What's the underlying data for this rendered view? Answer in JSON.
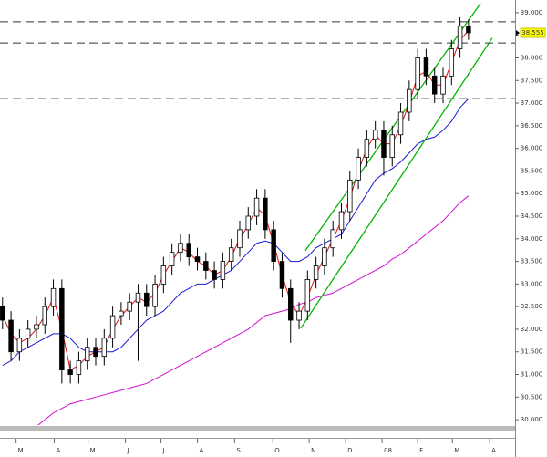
{
  "chart_data": {
    "type": "candlestick",
    "x": [
      0,
      1,
      2,
      3,
      4,
      5,
      6,
      7,
      8,
      9,
      10,
      11,
      12,
      13,
      14,
      15,
      16,
      17,
      18,
      19,
      20,
      21,
      22,
      23,
      24,
      25,
      26,
      27,
      28,
      29,
      30,
      31,
      32,
      33,
      34,
      35,
      36,
      37,
      38,
      39,
      40,
      41,
      42,
      43,
      44,
      45,
      46,
      47,
      48,
      49,
      50,
      51,
      52,
      53,
      54,
      55
    ],
    "open": [
      32.5,
      32.2,
      31.5,
      31.8,
      32.0,
      32.1,
      32.5,
      32.9,
      31.1,
      31.0,
      31.3,
      31.6,
      31.4,
      31.8,
      32.3,
      32.4,
      32.6,
      32.8,
      32.5,
      33.0,
      33.4,
      33.7,
      33.9,
      33.6,
      33.5,
      33.3,
      33.1,
      33.5,
      33.8,
      34.2,
      34.5,
      34.9,
      34.2,
      33.5,
      32.9,
      32.2,
      32.4,
      33.1,
      33.4,
      33.8,
      34.2,
      34.6,
      35.3,
      35.8,
      36.2,
      36.4,
      35.8,
      36.3,
      36.8,
      37.3,
      38.0,
      37.6,
      37.2,
      37.6,
      38.2,
      38.7
    ],
    "high": [
      32.7,
      32.4,
      32.0,
      32.2,
      32.3,
      32.7,
      33.1,
      33.1,
      31.3,
      31.5,
      31.8,
      31.8,
      32.0,
      32.5,
      32.6,
      32.8,
      33.0,
      33.0,
      33.2,
      33.6,
      33.9,
      34.1,
      34.1,
      33.8,
      33.7,
      33.5,
      33.7,
      34.0,
      34.4,
      34.7,
      35.1,
      35.1,
      34.4,
      33.7,
      33.1,
      32.6,
      33.3,
      33.6,
      34.0,
      34.4,
      34.8,
      35.5,
      36.0,
      36.4,
      36.6,
      36.6,
      36.5,
      37.0,
      37.5,
      38.2,
      38.2,
      37.8,
      37.8,
      38.4,
      38.9,
      38.85
    ],
    "low": [
      32.0,
      31.3,
      31.3,
      31.6,
      31.8,
      31.9,
      32.3,
      30.8,
      30.8,
      30.8,
      31.1,
      31.2,
      31.2,
      31.6,
      32.1,
      32.2,
      31.3,
      32.3,
      32.3,
      32.8,
      33.2,
      33.5,
      33.4,
      33.3,
      33.1,
      32.9,
      32.9,
      33.3,
      33.6,
      34.0,
      34.3,
      34.0,
      33.3,
      32.7,
      31.7,
      32.0,
      32.2,
      32.9,
      33.2,
      33.6,
      34.0,
      34.4,
      35.1,
      35.6,
      36.0,
      35.4,
      35.6,
      36.1,
      36.6,
      37.1,
      37.4,
      37.0,
      37.0,
      37.4,
      38.0,
      38.4
    ],
    "close": [
      32.2,
      31.5,
      31.8,
      32.0,
      32.1,
      32.5,
      32.9,
      31.1,
      31.0,
      31.3,
      31.6,
      31.4,
      31.8,
      32.3,
      32.4,
      32.6,
      32.8,
      32.5,
      33.0,
      33.4,
      33.7,
      33.9,
      33.6,
      33.5,
      33.3,
      33.1,
      33.5,
      33.8,
      34.2,
      34.5,
      34.9,
      34.2,
      33.5,
      32.9,
      32.2,
      32.4,
      33.1,
      33.4,
      33.8,
      34.2,
      34.6,
      35.3,
      35.8,
      36.2,
      36.4,
      35.8,
      36.3,
      36.8,
      37.3,
      38.0,
      37.6,
      37.2,
      37.6,
      38.2,
      38.7,
      38.555
    ],
    "candle_color": "#000000",
    "series": [
      {
        "color": "#e01010",
        "values": [
          32.3,
          31.9,
          31.7,
          31.8,
          32.0,
          32.3,
          32.7,
          32.0,
          31.1,
          31.2,
          31.4,
          31.5,
          31.6,
          32.0,
          32.3,
          32.5,
          32.7,
          32.6,
          32.8,
          33.2,
          33.5,
          33.8,
          33.7,
          33.5,
          33.4,
          33.2,
          33.3,
          33.6,
          34.0,
          34.3,
          34.7,
          34.5,
          33.9,
          33.2,
          32.6,
          32.3,
          32.7,
          33.2,
          33.6,
          34.0,
          34.4,
          34.9,
          35.5,
          36.0,
          36.3,
          36.1,
          36.1,
          36.5,
          37.0,
          37.6,
          37.7,
          37.4,
          37.4,
          37.9,
          38.4,
          38.6
        ]
      },
      {
        "color": "#1a1ad0",
        "values": [
          31.2,
          31.3,
          31.5,
          31.6,
          31.7,
          31.8,
          31.9,
          31.9,
          31.8,
          31.6,
          31.5,
          31.5,
          31.5,
          31.5,
          31.6,
          31.8,
          32.0,
          32.2,
          32.3,
          32.4,
          32.6,
          32.8,
          32.9,
          33.0,
          33.0,
          33.1,
          33.2,
          33.3,
          33.5,
          33.7,
          33.9,
          33.95,
          33.9,
          33.7,
          33.5,
          33.5,
          33.6,
          33.8,
          33.9,
          34.0,
          34.1,
          34.4,
          34.7,
          35.0,
          35.3,
          35.45,
          35.55,
          35.7,
          35.9,
          36.1,
          36.2,
          36.25,
          36.4,
          36.6,
          36.9,
          37.1
        ]
      },
      {
        "color": "#d010d0",
        "values": [
          null,
          null,
          null,
          null,
          29.85,
          30.0,
          30.15,
          30.25,
          30.35,
          30.4,
          30.45,
          30.5,
          30.55,
          30.6,
          30.65,
          30.7,
          30.75,
          30.8,
          30.9,
          31.0,
          31.1,
          31.2,
          31.3,
          31.4,
          31.5,
          31.6,
          31.7,
          31.8,
          31.9,
          32.0,
          32.15,
          32.3,
          32.35,
          32.4,
          32.45,
          32.55,
          32.6,
          32.7,
          32.75,
          32.8,
          32.9,
          33.0,
          33.1,
          33.2,
          33.3,
          33.4,
          33.55,
          33.65,
          33.8,
          33.95,
          34.1,
          34.25,
          34.4,
          34.6,
          34.8,
          34.95
        ]
      }
    ],
    "trendlines": [
      {
        "color": "#00b400",
        "x": [
          35.75,
          56.7
        ],
        "y": [
          33.74,
          39.28
        ]
      },
      {
        "color": "#00b400",
        "x": [
          35.2,
          57.8
        ],
        "y": [
          32.02,
          38.44
        ]
      }
    ],
    "hlines": [
      38.8,
      38.33,
      37.1
    ],
    "last_price": 38.555,
    "xlim": [
      -0.3,
      60.5
    ],
    "xticks": [
      {
        "value": 1.6,
        "label": "M"
      },
      {
        "value": 6.1,
        "label": "A"
      },
      {
        "value": 10.1,
        "label": "M"
      },
      {
        "value": 14.5,
        "label": "J"
      },
      {
        "value": 18.7,
        "label": "J"
      },
      {
        "value": 23,
        "label": "A"
      },
      {
        "value": 27.4,
        "label": "S"
      },
      {
        "value": 31.9,
        "label": "O"
      },
      {
        "value": 36.2,
        "label": "N"
      },
      {
        "value": 40.5,
        "label": "D"
      },
      {
        "value": 44.8,
        "label": "08",
        "color": "#d00000"
      },
      {
        "value": 49,
        "label": "F"
      },
      {
        "value": 53.1,
        "label": "M"
      },
      {
        "value": 57.5,
        "label": "A"
      }
    ],
    "ylim": [
      29.8,
      39.2
    ],
    "yticks": [
      {
        "value": 30,
        "label": "30.000"
      },
      {
        "value": 30.5,
        "label": "30.500"
      },
      {
        "value": 31,
        "label": "31.000"
      },
      {
        "value": 31.5,
        "label": "31.500"
      },
      {
        "value": 32,
        "label": "32.000"
      },
      {
        "value": 32.5,
        "label": "32.500"
      },
      {
        "value": 33,
        "label": "33.000"
      },
      {
        "value": 33.5,
        "label": "33.500"
      },
      {
        "value": 34,
        "label": "34.000"
      },
      {
        "value": 34.5,
        "label": "34.500"
      },
      {
        "value": 35,
        "label": "35.000"
      },
      {
        "value": 35.5,
        "label": "35.500"
      },
      {
        "value": 36,
        "label": "36.000"
      },
      {
        "value": 36.5,
        "label": "36.500"
      },
      {
        "value": 37,
        "label": "37.000"
      },
      {
        "value": 37.5,
        "label": "37.500"
      },
      {
        "value": 38,
        "label": "38.000"
      },
      {
        "value": 38.5,
        "label": "38.500"
      },
      {
        "value": 39,
        "label": "39.000"
      }
    ]
  }
}
